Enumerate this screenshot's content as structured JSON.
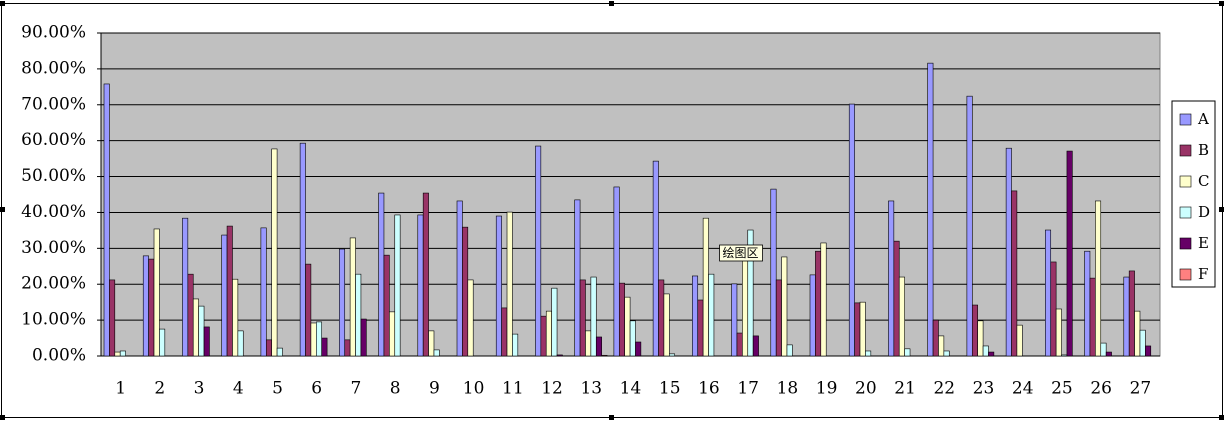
{
  "chart_data": {
    "type": "bar",
    "categories": [
      "1",
      "2",
      "3",
      "4",
      "5",
      "6",
      "7",
      "8",
      "9",
      "10",
      "11",
      "12",
      "13",
      "14",
      "15",
      "16",
      "17",
      "18",
      "19",
      "20",
      "21",
      "22",
      "23",
      "24",
      "25",
      "26",
      "27"
    ],
    "ylim": [
      0,
      90
    ],
    "yticks": [
      {
        "value": 0,
        "label": "0.00%"
      },
      {
        "value": 10,
        "label": "10.00%"
      },
      {
        "value": 20,
        "label": "20.00%"
      },
      {
        "value": 30,
        "label": "30.00%"
      },
      {
        "value": 40,
        "label": "40.00%"
      },
      {
        "value": 50,
        "label": "50.00%"
      },
      {
        "value": 60,
        "label": "60.00%"
      },
      {
        "value": 70,
        "label": "70.00%"
      },
      {
        "value": 80,
        "label": "80.00%"
      },
      {
        "value": 90,
        "label": "90.00%"
      }
    ],
    "grid": true,
    "legend": "right",
    "annotation": "绘图区",
    "series": [
      {
        "name": "A",
        "color": "#9999ff",
        "values": [
          75.8,
          27.9,
          38.4,
          33.7,
          35.7,
          59.3,
          29.8,
          45.4,
          39.3,
          43.2,
          39.0,
          58.5,
          43.5,
          47.1,
          54.3,
          22.3,
          20.1,
          46.5,
          22.6,
          70.2,
          43.2,
          81.6,
          72.4,
          57.9,
          35.1,
          29.2,
          22.0
        ]
      },
      {
        "name": "B",
        "color": "#993366",
        "values": [
          21.2,
          27.0,
          22.8,
          36.2,
          4.5,
          25.6,
          4.5,
          28.1,
          45.4,
          35.9,
          13.4,
          11.1,
          21.2,
          20.3,
          21.2,
          15.6,
          6.4,
          21.2,
          29.2,
          14.8,
          32.0,
          10.0,
          14.2,
          46.0,
          26.2,
          21.7,
          23.7
        ]
      },
      {
        "name": "C",
        "color": "#ffffcc",
        "values": [
          1.1,
          35.4,
          15.9,
          21.4,
          57.7,
          9.2,
          32.9,
          12.3,
          7.0,
          21.2,
          40.1,
          12.5,
          7.0,
          16.4,
          17.3,
          38.4,
          26.7,
          27.6,
          31.5,
          15.0,
          22.0,
          5.6,
          9.8,
          8.6,
          13.1,
          43.2,
          12.5
        ]
      },
      {
        "name": "D",
        "color": "#ccffff",
        "values": [
          1.4,
          7.5,
          13.9,
          7.0,
          2.2,
          9.5,
          22.8,
          39.3,
          1.7,
          0,
          6.1,
          18.9,
          22.0,
          9.8,
          0.6,
          22.8,
          35.1,
          3.1,
          0,
          1.4,
          2.0,
          1.4,
          2.8,
          0,
          0.3,
          3.6,
          7.2
        ]
      },
      {
        "name": "E",
        "color": "#660066",
        "values": [
          0,
          0,
          8.1,
          0,
          0,
          5.0,
          10.3,
          0,
          0,
          0,
          0,
          0.3,
          5.3,
          3.9,
          0,
          0,
          5.6,
          0,
          0,
          0,
          0,
          0,
          1.1,
          0,
          57.1,
          1.1,
          2.8
        ]
      },
      {
        "name": "F",
        "color": "#ff8080",
        "values": [
          0,
          0,
          0,
          0,
          0,
          0,
          0,
          0,
          0,
          0,
          0,
          0,
          0.2,
          0,
          0,
          0,
          0,
          0,
          0,
          0,
          0,
          0,
          0,
          0,
          0,
          0,
          0
        ]
      }
    ]
  }
}
